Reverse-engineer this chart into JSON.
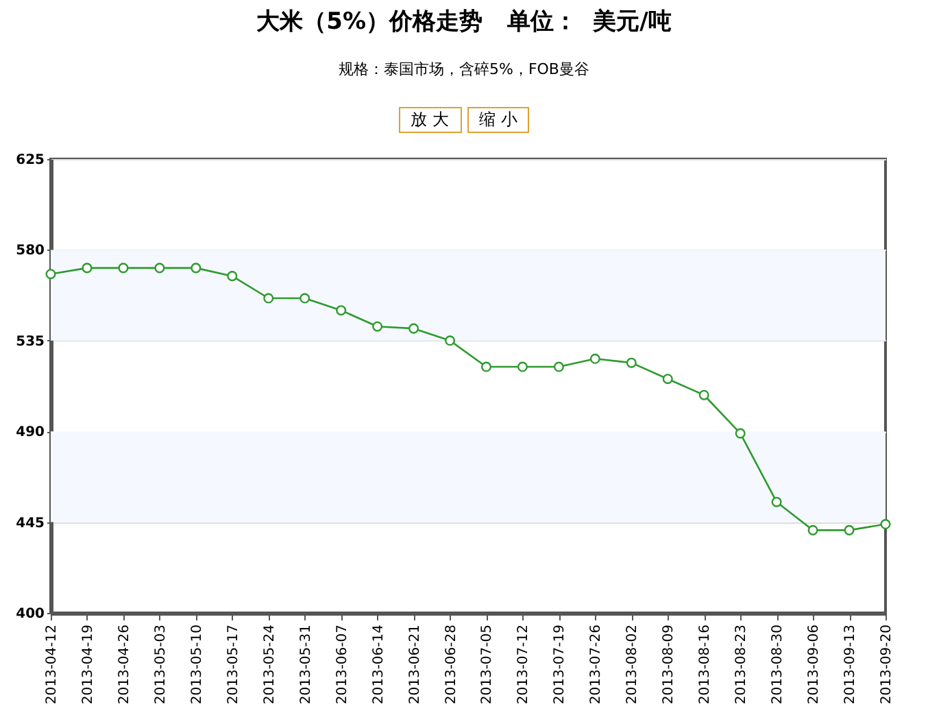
{
  "chart_data": {
    "type": "line",
    "title": "大米（5%）价格走势   单位：  美元/吨",
    "subtitle": "规格：泰国市场，含碎5%，FOB曼谷",
    "annotations": [
      "放 大",
      "缩 小"
    ],
    "x": [
      "2013-04-12",
      "2013-04-19",
      "2013-04-26",
      "2013-05-03",
      "2013-05-10",
      "2013-05-17",
      "2013-05-24",
      "2013-05-31",
      "2013-06-07",
      "2013-06-14",
      "2013-06-21",
      "2013-06-28",
      "2013-07-05",
      "2013-07-12",
      "2013-07-19",
      "2013-07-26",
      "2013-08-02",
      "2013-08-09",
      "2013-08-16",
      "2013-08-23",
      "2013-08-30",
      "2013-09-06",
      "2013-09-13",
      "2013-09-20"
    ],
    "series": [
      {
        "color": "#2e9a2e",
        "values": [
          568,
          571,
          571,
          571,
          571,
          567,
          556,
          556,
          550,
          542,
          541,
          535,
          522,
          522,
          522,
          526,
          524,
          516,
          508,
          489,
          455,
          441,
          441,
          444
        ]
      }
    ],
    "xlim": [
      "2013-04-12",
      "2013-09-20"
    ],
    "xticks": [
      "2013-04-12",
      "2013-04-19",
      "2013-04-26",
      "2013-05-03",
      "2013-05-10",
      "2013-05-17",
      "2013-05-24",
      "2013-05-31",
      "2013-06-07",
      "2013-06-14",
      "2013-06-21",
      "2013-06-28",
      "2013-07-05",
      "2013-07-12",
      "2013-07-19",
      "2013-07-26",
      "2013-08-02",
      "2013-08-09",
      "2013-08-16",
      "2013-08-23",
      "2013-08-30",
      "2013-09-06",
      "2013-09-13",
      "2013-09-20"
    ],
    "ylim": [
      400,
      625
    ],
    "yticks": [
      400,
      445,
      490,
      535,
      580,
      625
    ],
    "bands": [
      {
        "axis": "y",
        "from": 445,
        "to": 490,
        "color": "#f5f9ff"
      },
      {
        "axis": "y",
        "from": 535,
        "to": 580,
        "color": "#f5f9ff"
      }
    ],
    "grid": "y",
    "marker": "circle",
    "line_style": "solid"
  }
}
